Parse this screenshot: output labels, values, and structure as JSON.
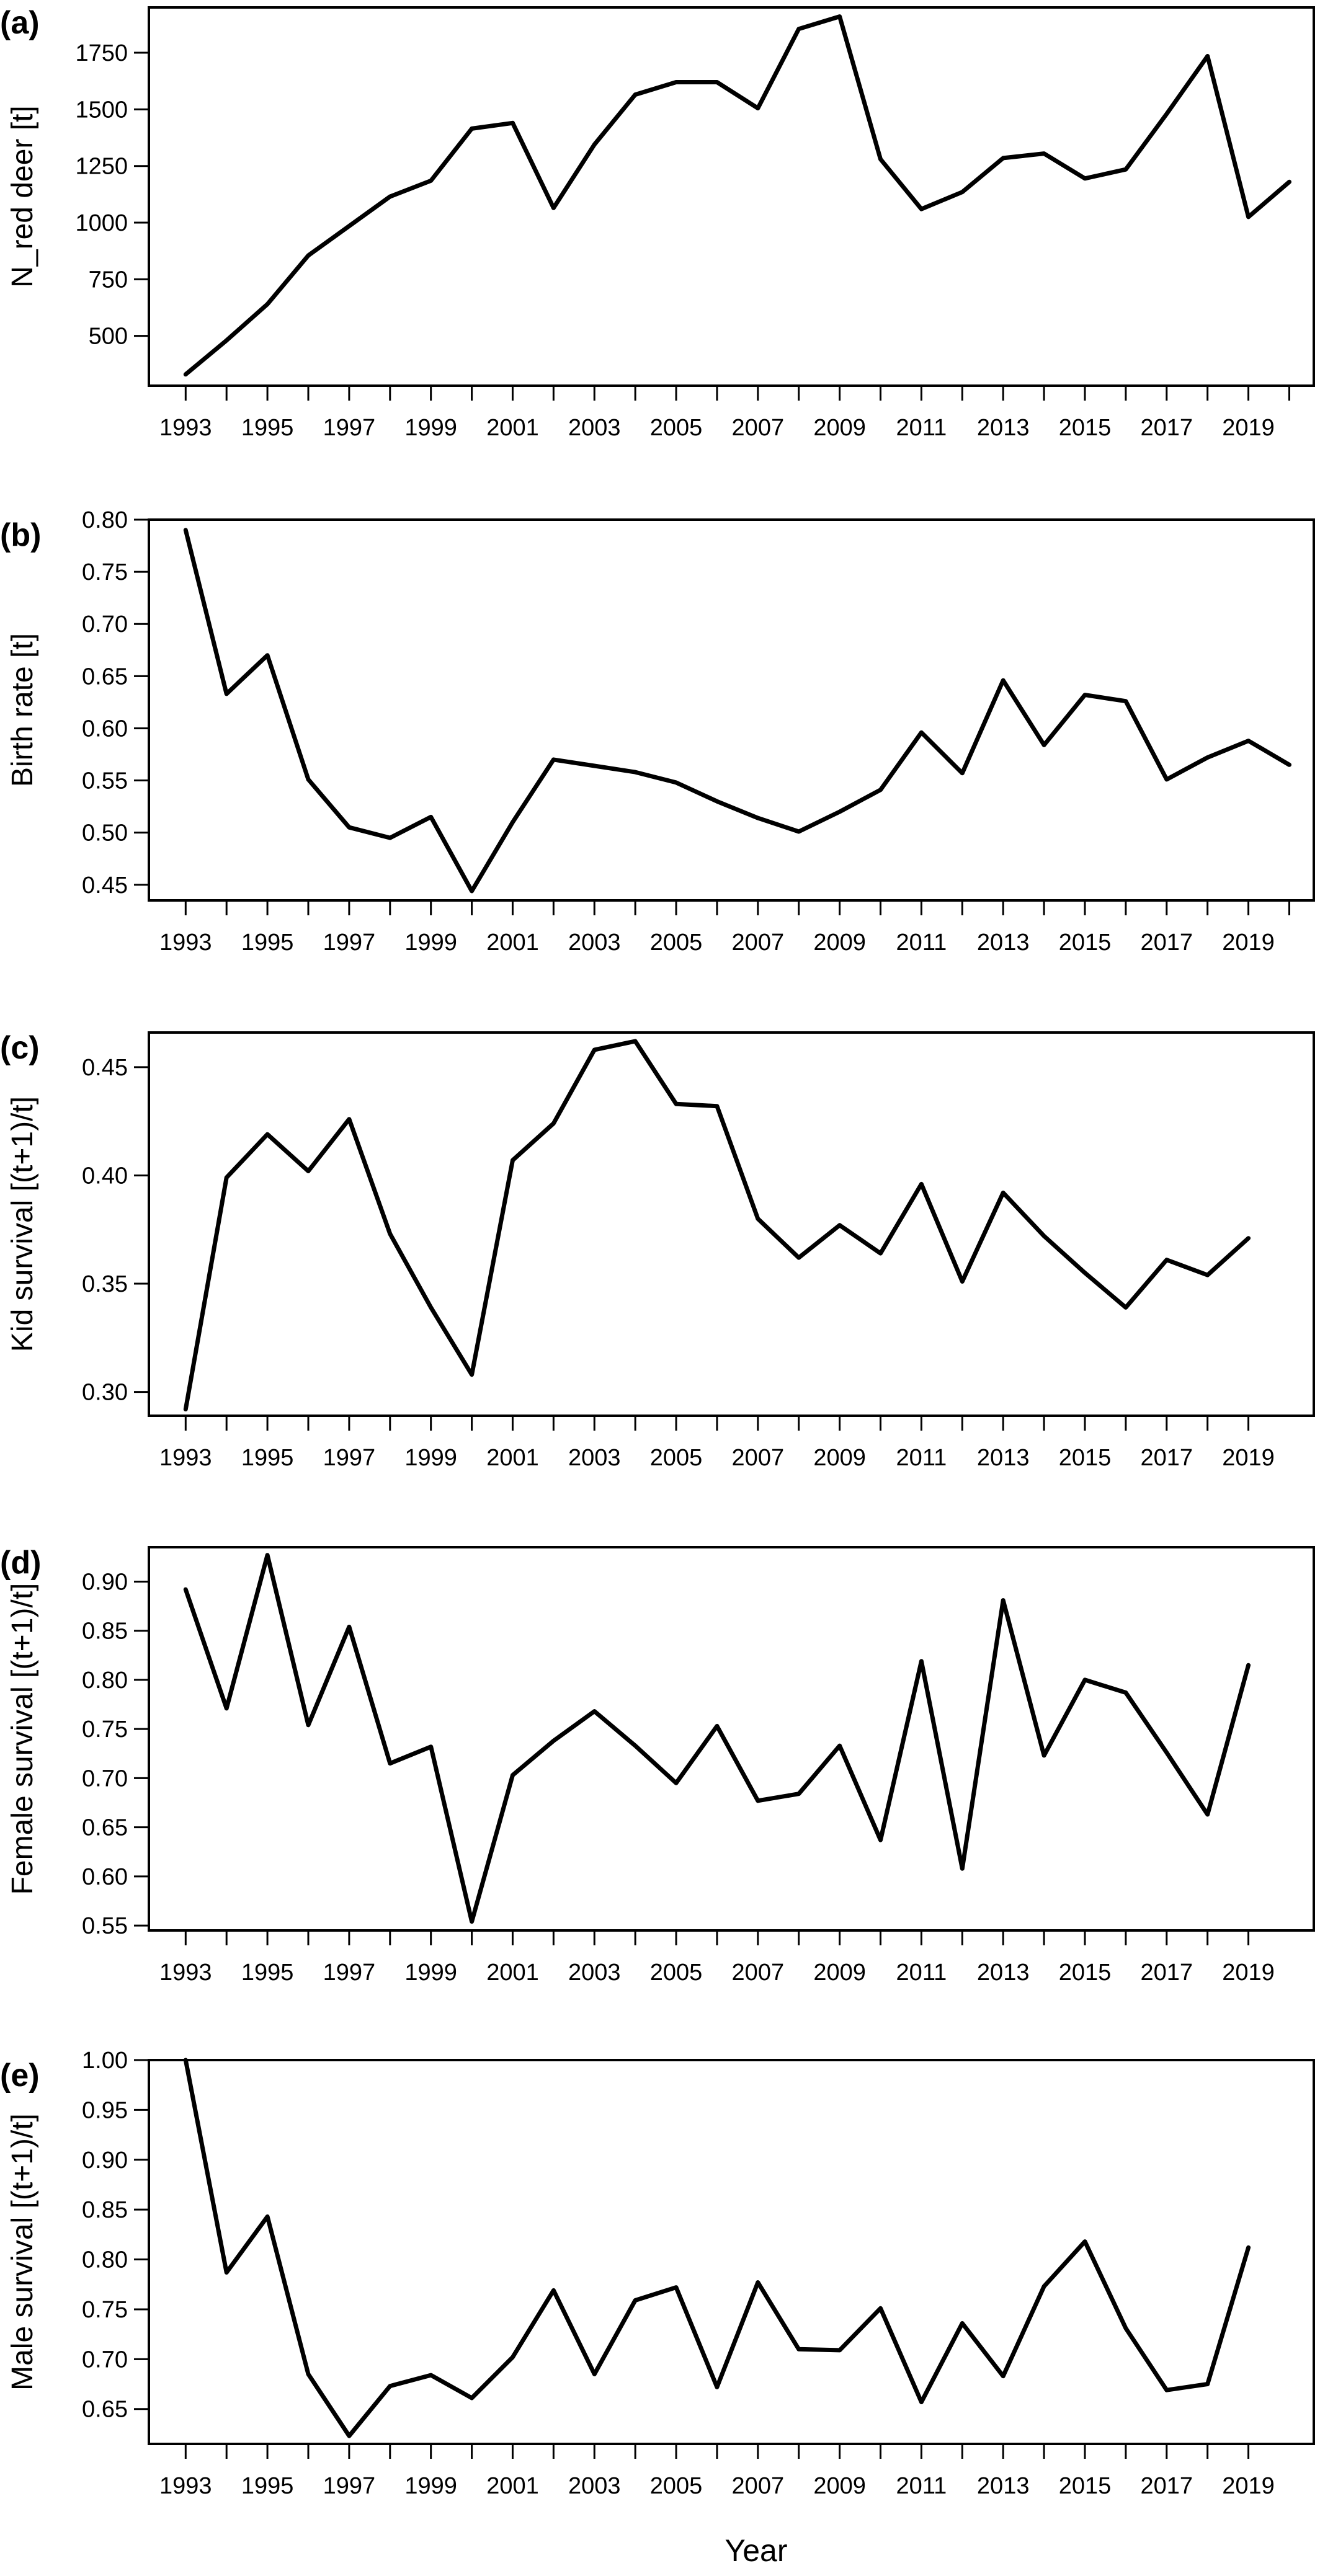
{
  "figure": {
    "xlabel": "Year"
  },
  "chart_data": [
    {
      "type": "line",
      "panel": "(a)",
      "ylabel": "N_red deer [t]",
      "x": [
        1993,
        1994,
        1995,
        1996,
        1997,
        1998,
        1999,
        2000,
        2001,
        2002,
        2003,
        2004,
        2005,
        2006,
        2007,
        2008,
        2009,
        2010,
        2011,
        2012,
        2013,
        2014,
        2015,
        2016,
        2017,
        2018,
        2019,
        2020
      ],
      "values": [
        330,
        480,
        640,
        855,
        985,
        1115,
        1185,
        1415,
        1440,
        1065,
        1345,
        1565,
        1620,
        1620,
        1505,
        1855,
        1910,
        1280,
        1060,
        1135,
        1285,
        1305,
        1195,
        1235,
        1480,
        1735,
        1025,
        1180
      ],
      "ylim": [
        280,
        1950
      ],
      "yticks": [
        500,
        750,
        1000,
        1250,
        1500,
        1750
      ],
      "xticks": [
        1993,
        1995,
        1997,
        1999,
        2001,
        2003,
        2005,
        2007,
        2009,
        2011,
        2013,
        2015,
        2017,
        2019
      ],
      "grid": false
    },
    {
      "type": "line",
      "panel": "(b)",
      "ylabel": "Birth rate [t]",
      "x": [
        1993,
        1994,
        1995,
        1996,
        1997,
        1998,
        1999,
        2000,
        2001,
        2002,
        2003,
        2004,
        2005,
        2006,
        2007,
        2008,
        2009,
        2010,
        2011,
        2012,
        2013,
        2014,
        2015,
        2016,
        2017,
        2018,
        2019,
        2020
      ],
      "values": [
        0.79,
        0.633,
        0.67,
        0.551,
        0.505,
        0.495,
        0.515,
        0.444,
        0.51,
        0.57,
        0.564,
        0.558,
        0.548,
        0.53,
        0.514,
        0.501,
        0.52,
        0.541,
        0.596,
        0.557,
        0.646,
        0.584,
        0.632,
        0.626,
        0.551,
        0.572,
        0.588,
        0.565
      ],
      "ylim": [
        0.435,
        0.8
      ],
      "yticks": [
        0.45,
        0.5,
        0.55,
        0.6,
        0.65,
        0.7,
        0.75,
        0.8
      ],
      "xticks": [
        1993,
        1995,
        1997,
        1999,
        2001,
        2003,
        2005,
        2007,
        2009,
        2011,
        2013,
        2015,
        2017,
        2019
      ],
      "grid": false
    },
    {
      "type": "line",
      "panel": "(c)",
      "ylabel": "Kid survival [(t+1)/t]",
      "x": [
        1993,
        1994,
        1995,
        1996,
        1997,
        1998,
        1999,
        2000,
        2001,
        2002,
        2003,
        2004,
        2005,
        2006,
        2007,
        2008,
        2009,
        2010,
        2011,
        2012,
        2013,
        2014,
        2015,
        2016,
        2017,
        2018,
        2019
      ],
      "values": [
        0.292,
        0.399,
        0.419,
        0.402,
        0.426,
        0.373,
        0.339,
        0.308,
        0.407,
        0.424,
        0.458,
        0.462,
        0.433,
        0.432,
        0.38,
        0.362,
        0.377,
        0.364,
        0.396,
        0.351,
        0.392,
        0.372,
        0.355,
        0.339,
        0.361,
        0.354,
        0.371
      ],
      "ylim": [
        0.289,
        0.466
      ],
      "yticks": [
        0.3,
        0.35,
        0.4,
        0.45
      ],
      "xticks": [
        1993,
        1995,
        1997,
        1999,
        2001,
        2003,
        2005,
        2007,
        2009,
        2011,
        2013,
        2015,
        2017,
        2019
      ],
      "grid": false
    },
    {
      "type": "line",
      "panel": "(d)",
      "ylabel": "Female survival [(t+1)/t]",
      "x": [
        1993,
        1994,
        1995,
        1996,
        1997,
        1998,
        1999,
        2000,
        2001,
        2002,
        2003,
        2004,
        2005,
        2006,
        2007,
        2008,
        2009,
        2010,
        2011,
        2012,
        2013,
        2014,
        2015,
        2016,
        2017,
        2018,
        2019
      ],
      "values": [
        0.892,
        0.771,
        0.927,
        0.754,
        0.854,
        0.715,
        0.732,
        0.554,
        0.703,
        0.738,
        0.768,
        0.733,
        0.695,
        0.753,
        0.677,
        0.684,
        0.733,
        0.637,
        0.819,
        0.608,
        0.881,
        0.723,
        0.8,
        0.787,
        0.726,
        0.663,
        0.815
      ],
      "ylim": [
        0.545,
        0.935
      ],
      "yticks": [
        0.55,
        0.6,
        0.65,
        0.7,
        0.75,
        0.8,
        0.85,
        0.9
      ],
      "xticks": [
        1993,
        1995,
        1997,
        1999,
        2001,
        2003,
        2005,
        2007,
        2009,
        2011,
        2013,
        2015,
        2017,
        2019
      ],
      "grid": false
    },
    {
      "type": "line",
      "panel": "(e)",
      "ylabel": "Male survival [(t+1)/t]",
      "x": [
        1993,
        1994,
        1995,
        1996,
        1997,
        1998,
        1999,
        2000,
        2001,
        2002,
        2003,
        2004,
        2005,
        2006,
        2007,
        2008,
        2009,
        2010,
        2011,
        2012,
        2013,
        2014,
        2015,
        2016,
        2017,
        2018,
        2019
      ],
      "values": [
        1.0,
        0.787,
        0.843,
        0.685,
        0.623,
        0.673,
        0.684,
        0.661,
        0.702,
        0.769,
        0.685,
        0.759,
        0.772,
        0.672,
        0.777,
        0.71,
        0.709,
        0.751,
        0.657,
        0.736,
        0.683,
        0.773,
        0.818,
        0.731,
        0.669,
        0.675,
        0.812
      ],
      "ylim": [
        0.615,
        1.0
      ],
      "yticks": [
        0.65,
        0.7,
        0.75,
        0.8,
        0.85,
        0.9,
        0.95,
        1.0
      ],
      "xticks": [
        1993,
        1995,
        1997,
        1999,
        2001,
        2003,
        2005,
        2007,
        2009,
        2011,
        2013,
        2015,
        2017,
        2019
      ],
      "grid": false
    }
  ]
}
